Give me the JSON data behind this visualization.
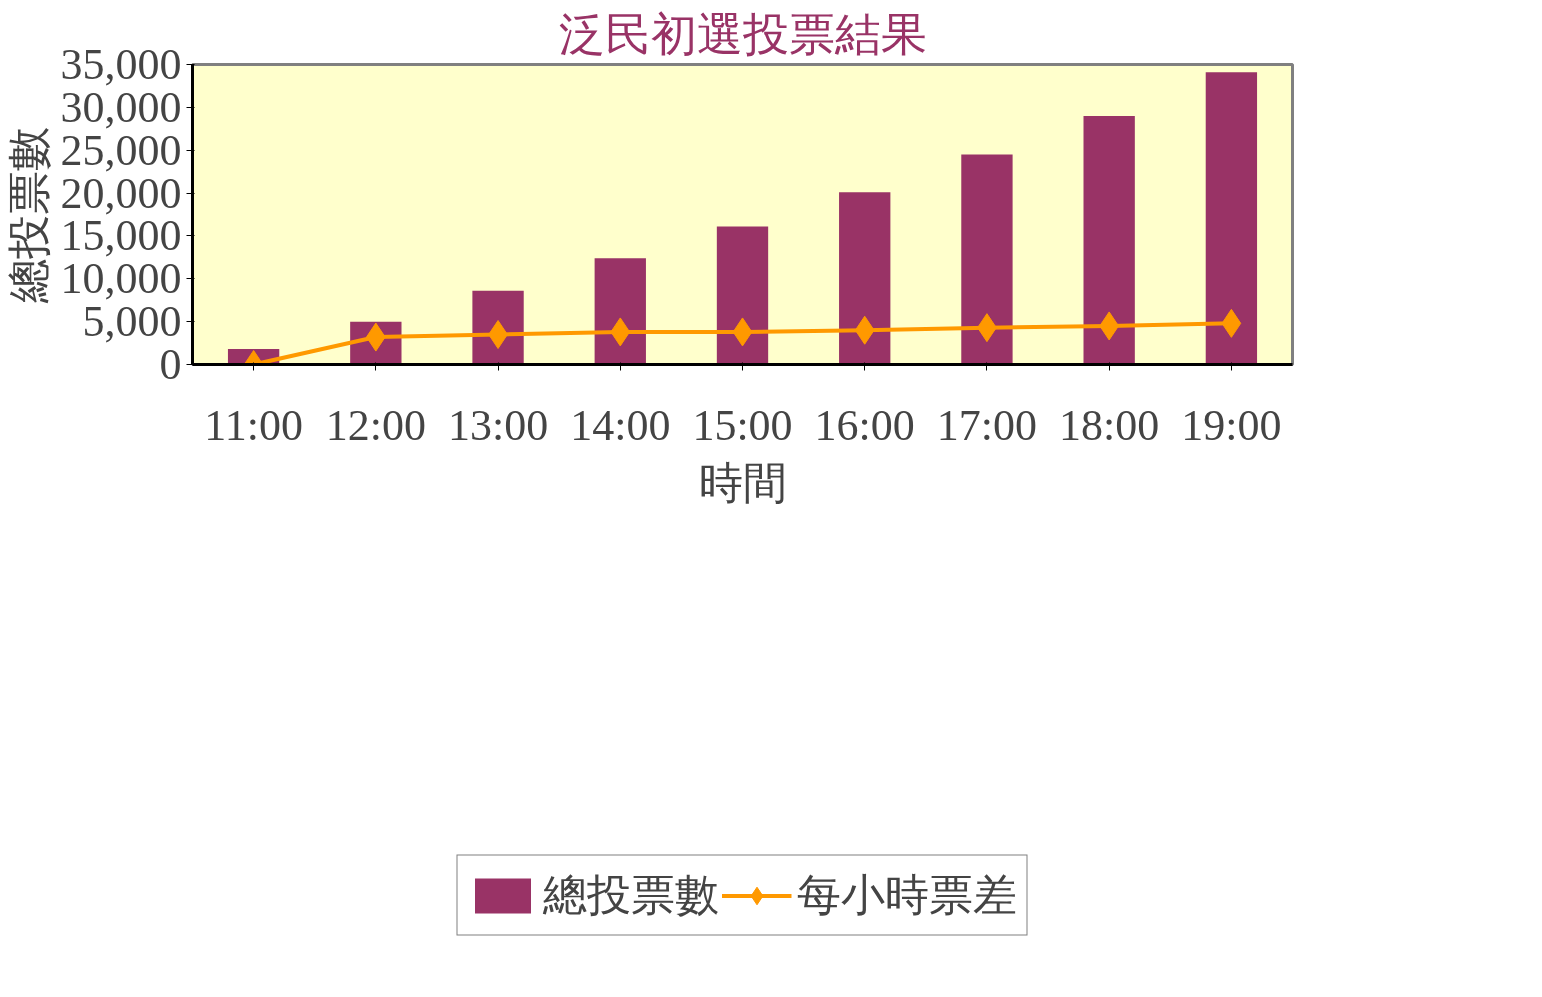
{
  "chart_data": {
    "type": "bar",
    "title": "泛民初選投票結果",
    "xlabel": "時間",
    "ylabel": "總投票數",
    "categories": [
      "11:00",
      "12:00",
      "13:00",
      "14:00",
      "15:00",
      "16:00",
      "17:00",
      "18:00",
      "19:00"
    ],
    "series": [
      {
        "name": "總投票數",
        "color": "#993366",
        "values": [
          1800,
          5000,
          8600,
          12400,
          16100,
          20100,
          24500,
          29000,
          34100
        ]
      },
      {
        "name": "每小時票差",
        "type": "line",
        "color": "#ff9900",
        "marker": "diamond",
        "values": [
          0,
          3200,
          3500,
          3800,
          3800,
          4000,
          4300,
          4500,
          4800
        ]
      }
    ],
    "ylim": [
      0,
      35000
    ],
    "yticks": [
      {
        "value": 0,
        "label": "0"
      },
      {
        "value": 5000,
        "label": "5,000"
      },
      {
        "value": 10000,
        "label": "10,000"
      },
      {
        "value": 15000,
        "label": "15,000"
      },
      {
        "value": 20000,
        "label": "20,000"
      },
      {
        "value": 25000,
        "label": "25,000"
      },
      {
        "value": 30000,
        "label": "30,000"
      },
      {
        "value": 35000,
        "label": "35,000"
      }
    ],
    "grid": false,
    "legend": "bottom"
  }
}
